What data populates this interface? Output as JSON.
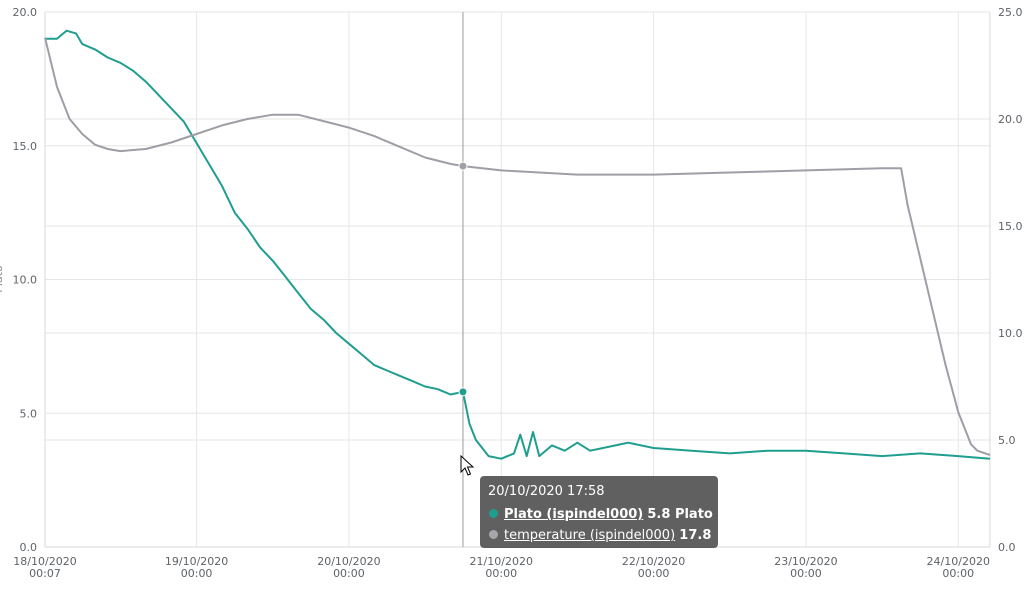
{
  "chart_data": {
    "type": "line",
    "title": "",
    "y_left_label": "Plato",
    "y_left_ticks": [
      "0.0",
      "5.0",
      "10.0",
      "15.0",
      "20.0"
    ],
    "y_left_lim": [
      0,
      20
    ],
    "y_right_ticks": [
      "0.0",
      "5.0",
      "10.0",
      "15.0",
      "20.0",
      "25.0"
    ],
    "y_right_lim": [
      0,
      25
    ],
    "x_range": [
      "2020-10-18 00:07",
      "2020-10-24 05:00"
    ],
    "x_ticks": [
      {
        "t": "2020-10-18 00:07",
        "date": "18/10/2020",
        "time": "00:07"
      },
      {
        "t": "2020-10-19 00:00",
        "date": "19/10/2020",
        "time": "00:00"
      },
      {
        "t": "2020-10-20 00:00",
        "date": "20/10/2020",
        "time": "00:00"
      },
      {
        "t": "2020-10-21 00:00",
        "date": "21/10/2020",
        "time": "00:00"
      },
      {
        "t": "2020-10-22 00:00",
        "date": "22/10/2020",
        "time": "00:00"
      },
      {
        "t": "2020-10-23 00:00",
        "date": "23/10/2020",
        "time": "00:00"
      },
      {
        "t": "2020-10-24 00:00",
        "date": "24/10/2020",
        "time": "00:00"
      }
    ],
    "grid": true,
    "series": [
      {
        "name": "Plato (ispindel000)",
        "unit": "Plato",
        "axis": "left",
        "color": "#1f9e8f",
        "points": [
          [
            "2020-10-18 00:07",
            19.0
          ],
          [
            "2020-10-18 02:00",
            19.0
          ],
          [
            "2020-10-18 03:30",
            19.3
          ],
          [
            "2020-10-18 05:00",
            19.2
          ],
          [
            "2020-10-18 06:00",
            18.8
          ],
          [
            "2020-10-18 08:00",
            18.6
          ],
          [
            "2020-10-18 10:00",
            18.3
          ],
          [
            "2020-10-18 12:00",
            18.1
          ],
          [
            "2020-10-18 14:00",
            17.8
          ],
          [
            "2020-10-18 16:00",
            17.4
          ],
          [
            "2020-10-18 18:00",
            16.9
          ],
          [
            "2020-10-18 20:00",
            16.4
          ],
          [
            "2020-10-18 22:00",
            15.9
          ],
          [
            "2020-10-19 00:00",
            15.1
          ],
          [
            "2020-10-19 02:00",
            14.3
          ],
          [
            "2020-10-19 04:00",
            13.5
          ],
          [
            "2020-10-19 06:00",
            12.5
          ],
          [
            "2020-10-19 08:00",
            11.9
          ],
          [
            "2020-10-19 10:00",
            11.2
          ],
          [
            "2020-10-19 12:00",
            10.7
          ],
          [
            "2020-10-19 14:00",
            10.1
          ],
          [
            "2020-10-19 16:00",
            9.5
          ],
          [
            "2020-10-19 18:00",
            8.9
          ],
          [
            "2020-10-19 20:00",
            8.5
          ],
          [
            "2020-10-19 22:00",
            8.0
          ],
          [
            "2020-10-20 00:00",
            7.6
          ],
          [
            "2020-10-20 02:00",
            7.2
          ],
          [
            "2020-10-20 04:00",
            6.8
          ],
          [
            "2020-10-20 06:00",
            6.6
          ],
          [
            "2020-10-20 08:00",
            6.4
          ],
          [
            "2020-10-20 10:00",
            6.2
          ],
          [
            "2020-10-20 12:00",
            6.0
          ],
          [
            "2020-10-20 14:00",
            5.9
          ],
          [
            "2020-10-20 16:00",
            5.7
          ],
          [
            "2020-10-20 17:58",
            5.8
          ],
          [
            "2020-10-20 19:00",
            4.6
          ],
          [
            "2020-10-20 20:00",
            4.0
          ],
          [
            "2020-10-20 22:00",
            3.4
          ],
          [
            "2020-10-21 00:00",
            3.3
          ],
          [
            "2020-10-21 02:00",
            3.5
          ],
          [
            "2020-10-21 03:00",
            4.2
          ],
          [
            "2020-10-21 04:00",
            3.4
          ],
          [
            "2020-10-21 05:00",
            4.3
          ],
          [
            "2020-10-21 06:00",
            3.4
          ],
          [
            "2020-10-21 08:00",
            3.8
          ],
          [
            "2020-10-21 10:00",
            3.6
          ],
          [
            "2020-10-21 12:00",
            3.9
          ],
          [
            "2020-10-21 14:00",
            3.6
          ],
          [
            "2020-10-21 18:00",
            3.8
          ],
          [
            "2020-10-21 20:00",
            3.9
          ],
          [
            "2020-10-22 00:00",
            3.7
          ],
          [
            "2020-10-22 06:00",
            3.6
          ],
          [
            "2020-10-22 12:00",
            3.5
          ],
          [
            "2020-10-22 18:00",
            3.6
          ],
          [
            "2020-10-23 00:00",
            3.6
          ],
          [
            "2020-10-23 06:00",
            3.5
          ],
          [
            "2020-10-23 12:00",
            3.4
          ],
          [
            "2020-10-23 18:00",
            3.5
          ],
          [
            "2020-10-24 00:00",
            3.4
          ],
          [
            "2020-10-24 05:00",
            3.3
          ]
        ]
      },
      {
        "name": "temperature (ispindel000)",
        "unit": "",
        "axis": "right",
        "color": "#9e9ea6",
        "points": [
          [
            "2020-10-18 00:07",
            23.8
          ],
          [
            "2020-10-18 02:00",
            21.5
          ],
          [
            "2020-10-18 04:00",
            20.0
          ],
          [
            "2020-10-18 06:00",
            19.3
          ],
          [
            "2020-10-18 08:00",
            18.8
          ],
          [
            "2020-10-18 10:00",
            18.6
          ],
          [
            "2020-10-18 12:00",
            18.5
          ],
          [
            "2020-10-18 16:00",
            18.6
          ],
          [
            "2020-10-18 20:00",
            18.9
          ],
          [
            "2020-10-19 00:00",
            19.3
          ],
          [
            "2020-10-19 04:00",
            19.7
          ],
          [
            "2020-10-19 08:00",
            20.0
          ],
          [
            "2020-10-19 12:00",
            20.2
          ],
          [
            "2020-10-19 16:00",
            20.2
          ],
          [
            "2020-10-19 20:00",
            19.9
          ],
          [
            "2020-10-20 00:00",
            19.6
          ],
          [
            "2020-10-20 04:00",
            19.2
          ],
          [
            "2020-10-20 08:00",
            18.7
          ],
          [
            "2020-10-20 12:00",
            18.2
          ],
          [
            "2020-10-20 16:00",
            17.9
          ],
          [
            "2020-10-20 17:58",
            17.8
          ],
          [
            "2020-10-21 00:00",
            17.6
          ],
          [
            "2020-10-21 12:00",
            17.4
          ],
          [
            "2020-10-22 00:00",
            17.4
          ],
          [
            "2020-10-22 12:00",
            17.5
          ],
          [
            "2020-10-23 00:00",
            17.6
          ],
          [
            "2020-10-23 12:00",
            17.7
          ],
          [
            "2020-10-23 15:00",
            17.7
          ],
          [
            "2020-10-23 16:00",
            16.0
          ],
          [
            "2020-10-23 18:00",
            13.5
          ],
          [
            "2020-10-23 20:00",
            11.0
          ],
          [
            "2020-10-23 22:00",
            8.5
          ],
          [
            "2020-10-24 00:00",
            6.3
          ],
          [
            "2020-10-24 02:00",
            4.8
          ],
          [
            "2020-10-24 03:00",
            4.5
          ],
          [
            "2020-10-24 05:00",
            4.3
          ]
        ]
      }
    ],
    "hover": {
      "t": "2020-10-20 17:58",
      "title": "20/10/2020 17:58",
      "rows": [
        {
          "name": "Plato (ispindel000)",
          "value": "5.8 Plato",
          "color": "#1f9e8f"
        },
        {
          "name": "temperature (ispindel000)",
          "value": "17.8",
          "color": "#a6a6ad"
        }
      ]
    }
  },
  "icons": {
    "cursor": "mouse-pointer-icon"
  },
  "colors": {
    "grid": "#e6e6e6",
    "crosshair": "#9a9a9a",
    "tooltip_bg": "#525252"
  }
}
